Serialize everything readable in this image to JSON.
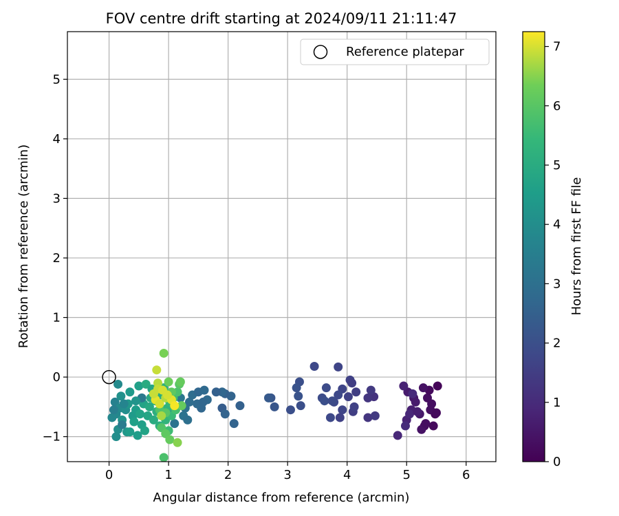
{
  "chart_data": {
    "type": "scatter",
    "title": "FOV centre drift starting at 2024/09/11 21:11:47",
    "xlabel": "Angular distance from reference (arcmin)",
    "ylabel": "Rotation from reference (arcmin)",
    "xlim": [
      -0.7,
      6.5
    ],
    "ylim": [
      -1.42,
      5.8
    ],
    "xticks": [
      0,
      1,
      2,
      3,
      4,
      5,
      6
    ],
    "yticks": [
      -1,
      0,
      1,
      2,
      3,
      4,
      5
    ],
    "ytick_labels": [
      "−1",
      "0",
      "1",
      "2",
      "3",
      "4",
      "5"
    ],
    "grid": true,
    "legend": {
      "label": "Reference platepar",
      "placement": "top-right",
      "marker": "open-circle"
    },
    "reference_point": {
      "x": 0,
      "y": 0
    },
    "colorbar": {
      "label": "Hours from first FF file",
      "colormap": "viridis",
      "range": [
        0,
        7.25
      ],
      "ticks": [
        0,
        1,
        2,
        3,
        4,
        5,
        6,
        7
      ]
    },
    "points": [
      [
        5.52,
        -0.15,
        0.1
      ],
      [
        5.42,
        -0.45,
        0.3
      ],
      [
        5.3,
        -0.82,
        0.2
      ],
      [
        5.48,
        -0.62,
        0.1
      ],
      [
        5.25,
        -0.88,
        0.4
      ],
      [
        5.02,
        -0.25,
        0.6
      ],
      [
        5.12,
        -0.35,
        0.5
      ],
      [
        5.35,
        -0.35,
        0.3
      ],
      [
        5.38,
        -0.22,
        0.2
      ],
      [
        5.22,
        -0.62,
        0.5
      ],
      [
        5.08,
        -0.55,
        0.7
      ],
      [
        5.45,
        -0.82,
        0.2
      ],
      [
        4.85,
        -0.98,
        0.9
      ],
      [
        5.0,
        -0.72,
        0.8
      ],
      [
        5.15,
        -0.42,
        0.6
      ],
      [
        5.28,
        -0.18,
        0.4
      ],
      [
        5.4,
        -0.55,
        0.3
      ],
      [
        4.95,
        -0.15,
        0.8
      ],
      [
        5.05,
        -0.62,
        0.9
      ],
      [
        5.32,
        -0.78,
        0.3
      ],
      [
        5.18,
        -0.58,
        0.7
      ],
      [
        5.1,
        -0.28,
        1.0
      ],
      [
        4.98,
        -0.82,
        1.0
      ],
      [
        5.5,
        -0.6,
        0.2
      ],
      [
        4.45,
        -0.33,
        1.2
      ],
      [
        4.35,
        -0.68,
        1.3
      ],
      [
        4.47,
        -0.65,
        1.4
      ],
      [
        4.1,
        -0.58,
        1.5
      ],
      [
        4.4,
        -0.22,
        1.4
      ],
      [
        4.35,
        -0.35,
        1.3
      ],
      [
        4.05,
        -0.05,
        1.6
      ],
      [
        4.02,
        -0.33,
        1.6
      ],
      [
        4.08,
        -0.1,
        1.5
      ],
      [
        3.92,
        -0.2,
        1.7
      ],
      [
        3.85,
        0.17,
        1.7
      ],
      [
        3.45,
        0.18,
        1.8
      ],
      [
        3.65,
        -0.18,
        1.9
      ],
      [
        3.78,
        -0.42,
        1.8
      ],
      [
        3.92,
        -0.55,
        1.7
      ],
      [
        3.88,
        -0.68,
        1.6
      ],
      [
        3.72,
        -0.68,
        1.8
      ],
      [
        3.58,
        -0.35,
        1.9
      ],
      [
        3.62,
        -0.4,
        2.0
      ],
      [
        3.85,
        -0.3,
        1.8
      ],
      [
        4.15,
        -0.25,
        1.5
      ],
      [
        3.2,
        -0.08,
        2.0
      ],
      [
        3.18,
        -0.32,
        2.1
      ],
      [
        3.15,
        -0.18,
        2.1
      ],
      [
        3.22,
        -0.48,
        2.0
      ],
      [
        3.05,
        -0.55,
        2.0
      ],
      [
        4.12,
        -0.5,
        1.6
      ],
      [
        3.75,
        -0.4,
        1.9
      ],
      [
        2.72,
        -0.35,
        2.2
      ],
      [
        2.78,
        -0.5,
        2.2
      ],
      [
        2.68,
        -0.35,
        2.3
      ],
      [
        2.2,
        -0.48,
        2.5
      ],
      [
        2.1,
        -0.78,
        2.6
      ],
      [
        2.05,
        -0.32,
        2.6
      ],
      [
        1.95,
        -0.28,
        2.5
      ],
      [
        1.9,
        -0.52,
        2.4
      ],
      [
        1.95,
        -0.62,
        2.6
      ],
      [
        1.9,
        -0.25,
        2.7
      ],
      [
        1.8,
        -0.25,
        2.5
      ],
      [
        1.65,
        -0.38,
        2.8
      ],
      [
        1.55,
        -0.52,
        2.7
      ],
      [
        1.48,
        -0.45,
        2.8
      ],
      [
        1.4,
        -0.3,
        2.9
      ],
      [
        1.5,
        -0.25,
        2.7
      ],
      [
        1.35,
        -0.42,
        2.9
      ],
      [
        1.28,
        -0.52,
        3.0
      ],
      [
        1.25,
        -0.65,
        3.1
      ],
      [
        1.32,
        -0.72,
        3.0
      ],
      [
        1.1,
        -0.78,
        3.1
      ],
      [
        1.0,
        -0.58,
        3.2
      ],
      [
        1.05,
        -0.45,
        3.1
      ],
      [
        1.2,
        -0.35,
        3.2
      ],
      [
        1.6,
        -0.22,
        2.8
      ],
      [
        1.58,
        -0.42,
        2.7
      ],
      [
        0.1,
        -0.42,
        3.6
      ],
      [
        0.05,
        -0.68,
        3.8
      ],
      [
        0.12,
        -0.62,
        3.8
      ],
      [
        0.15,
        -0.88,
        4.0
      ],
      [
        0.12,
        -1.0,
        4.0
      ],
      [
        0.18,
        -0.52,
        3.9
      ],
      [
        0.2,
        -0.32,
        4.1
      ],
      [
        0.22,
        -0.72,
        4.2
      ],
      [
        0.28,
        -0.55,
        4.0
      ],
      [
        0.32,
        -0.45,
        4.3
      ],
      [
        0.3,
        -0.92,
        4.3
      ],
      [
        0.35,
        -0.25,
        4.4
      ],
      [
        0.25,
        -0.45,
        3.7
      ],
      [
        0.4,
        -0.65,
        4.4
      ],
      [
        0.45,
        -0.55,
        4.5
      ],
      [
        0.48,
        -0.98,
        4.5
      ],
      [
        0.5,
        -0.15,
        4.6
      ],
      [
        0.55,
        -0.8,
        4.6
      ],
      [
        0.58,
        -0.45,
        4.7
      ],
      [
        0.6,
        -0.9,
        4.7
      ],
      [
        0.65,
        -0.65,
        4.8
      ],
      [
        0.7,
        -0.35,
        4.9
      ],
      [
        0.62,
        -0.12,
        5.0
      ],
      [
        0.75,
        -0.72,
        5.0
      ],
      [
        0.72,
        -0.2,
        4.8
      ],
      [
        0.8,
        -0.58,
        5.1
      ],
      [
        0.85,
        -0.82,
        5.1
      ],
      [
        0.88,
        -0.3,
        5.0
      ],
      [
        0.9,
        -0.62,
        5.2
      ],
      [
        0.92,
        -0.18,
        5.2
      ],
      [
        0.95,
        -0.72,
        5.3
      ],
      [
        0.98,
        -0.52,
        5.3
      ],
      [
        0.35,
        -0.92,
        4.5
      ],
      [
        0.42,
        -0.75,
        4.6
      ],
      [
        0.52,
        -0.62,
        4.7
      ],
      [
        0.68,
        -0.5,
        4.9
      ],
      [
        0.78,
        -0.4,
        5.0
      ],
      [
        0.15,
        -0.12,
        3.9
      ],
      [
        0.08,
        -0.55,
        3.5
      ],
      [
        0.22,
        -0.8,
        3.4
      ],
      [
        0.55,
        -0.35,
        3.3
      ],
      [
        0.45,
        -0.4,
        4.2
      ],
      [
        1.02,
        -0.42,
        5.4
      ],
      [
        1.05,
        -0.65,
        5.5
      ],
      [
        1.08,
        -0.35,
        5.6
      ],
      [
        1.12,
        -0.55,
        5.7
      ],
      [
        1.0,
        -0.9,
        5.6
      ],
      [
        1.15,
        -0.25,
        5.8
      ],
      [
        1.18,
        -0.12,
        6.0
      ],
      [
        1.22,
        -0.48,
        6.2
      ],
      [
        1.2,
        -0.08,
        6.2
      ],
      [
        1.0,
        -0.08,
        6.3
      ],
      [
        0.92,
        0.4,
        6.4
      ],
      [
        0.88,
        -0.85,
        5.9
      ],
      [
        0.95,
        -0.95,
        6.1
      ],
      [
        1.02,
        -1.05,
        6.2
      ],
      [
        0.92,
        -1.35,
        5.8
      ],
      [
        1.15,
        -1.1,
        6.5
      ],
      [
        0.85,
        -0.55,
        5.9
      ],
      [
        0.95,
        -0.6,
        6.0
      ],
      [
        1.05,
        -0.25,
        6.1
      ],
      [
        0.82,
        -0.1,
        6.8
      ],
      [
        0.82,
        -0.2,
        6.9
      ],
      [
        0.9,
        -0.22,
        7.0
      ],
      [
        0.8,
        0.12,
        6.9
      ],
      [
        0.78,
        -0.38,
        7.1
      ],
      [
        0.85,
        -0.45,
        7.0
      ],
      [
        0.95,
        -0.35,
        6.8
      ],
      [
        1.05,
        -0.38,
        7.1
      ],
      [
        1.1,
        -0.48,
        7.2
      ],
      [
        0.98,
        -0.3,
        7.0
      ],
      [
        0.88,
        -0.65,
        6.7
      ],
      [
        0.75,
        -0.28,
        6.9
      ]
    ]
  }
}
